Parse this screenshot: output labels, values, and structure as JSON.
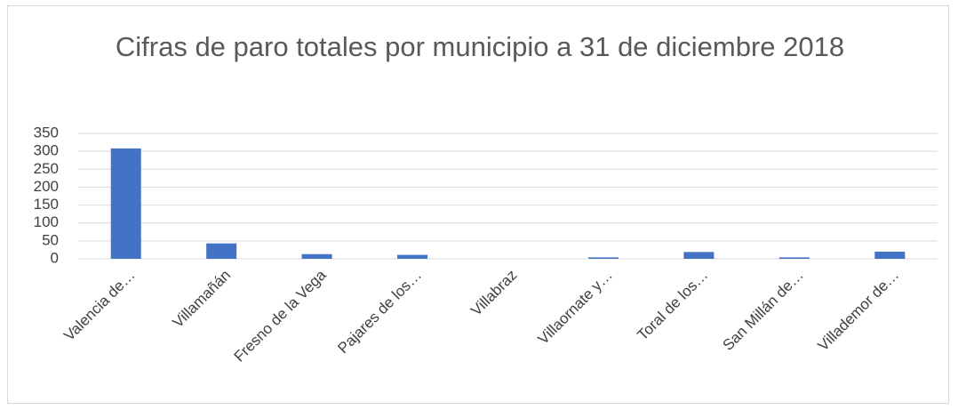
{
  "chart_data": {
    "type": "bar",
    "title": "Cifras de paro totales por municipio a 31 de diciembre 2018",
    "categories": [
      "Valencia de…",
      "Villamañán",
      "Fresno de la Vega",
      "Pajares de los…",
      "Villabraz",
      "Villaornate y…",
      "Toral de los…",
      "San Millán de…",
      "Villademor de…"
    ],
    "values": [
      308,
      43,
      13,
      11,
      0,
      4,
      19,
      4,
      20
    ],
    "color": "#4472c4",
    "ylim": [
      0,
      350
    ],
    "yticks": [
      0,
      50,
      100,
      150,
      200,
      250,
      300,
      350
    ],
    "grid": true
  }
}
